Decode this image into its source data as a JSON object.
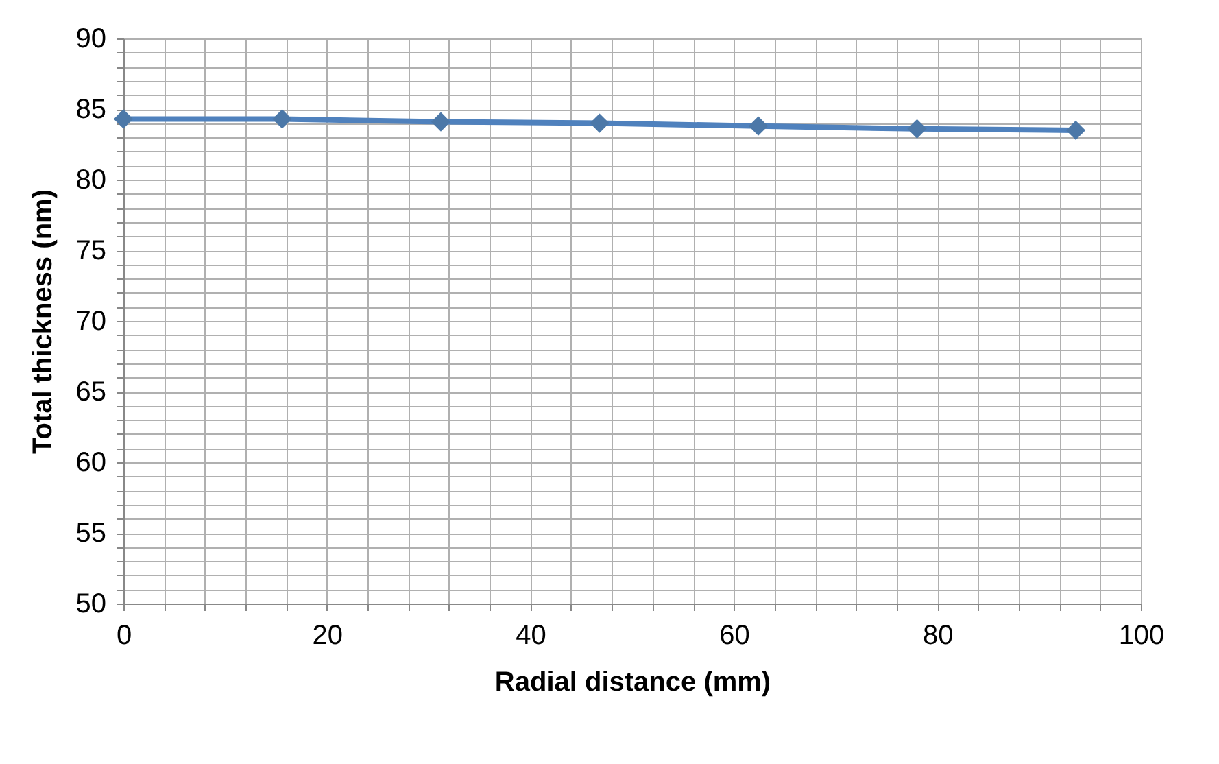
{
  "chart_data": {
    "type": "line",
    "xlabel": "Radial distance (mm)",
    "ylabel": "Total thickness (nm)",
    "x": [
      0,
      15.6,
      31.2,
      46.8,
      62.4,
      78,
      93.6
    ],
    "series": [
      {
        "color": "#4f81bd",
        "values": [
          84.3,
          84.3,
          84.1,
          84.0,
          83.8,
          83.6,
          83.5
        ]
      }
    ],
    "marker": "diamond",
    "line_style": "solid",
    "grid": true,
    "xlim": [
      0,
      100
    ],
    "ylim": [
      50,
      90
    ],
    "xticks": [
      0,
      {
        "value": 4,
        "label": null
      },
      {
        "value": 8,
        "label": null
      },
      {
        "value": 12,
        "label": null
      },
      {
        "value": 16,
        "label": null
      },
      20,
      {
        "value": 24,
        "label": null
      },
      {
        "value": 28,
        "label": null
      },
      {
        "value": 32,
        "label": null
      },
      {
        "value": 36,
        "label": null
      },
      40,
      {
        "value": 44,
        "label": null
      },
      {
        "value": 48,
        "label": null
      },
      {
        "value": 52,
        "label": null
      },
      {
        "value": 56,
        "label": null
      },
      60,
      {
        "value": 64,
        "label": null
      },
      {
        "value": 68,
        "label": null
      },
      {
        "value": 72,
        "label": null
      },
      {
        "value": 76,
        "label": null
      },
      80,
      {
        "value": 84,
        "label": null
      },
      {
        "value": 88,
        "label": null
      },
      {
        "value": 92,
        "label": null
      },
      {
        "value": 96,
        "label": null
      },
      100
    ],
    "yticks": [
      50,
      {
        "value": 51,
        "label": null
      },
      {
        "value": 52,
        "label": null
      },
      {
        "value": 53,
        "label": null
      },
      {
        "value": 54,
        "label": null
      },
      55,
      {
        "value": 56,
        "label": null
      },
      {
        "value": 57,
        "label": null
      },
      {
        "value": 58,
        "label": null
      },
      {
        "value": 59,
        "label": null
      },
      60,
      {
        "value": 61,
        "label": null
      },
      {
        "value": 62,
        "label": null
      },
      {
        "value": 63,
        "label": null
      },
      {
        "value": 64,
        "label": null
      },
      65,
      {
        "value": 66,
        "label": null
      },
      {
        "value": 67,
        "label": null
      },
      {
        "value": 68,
        "label": null
      },
      {
        "value": 69,
        "label": null
      },
      70,
      {
        "value": 71,
        "label": null
      },
      {
        "value": 72,
        "label": null
      },
      {
        "value": 73,
        "label": null
      },
      {
        "value": 74,
        "label": null
      },
      75,
      {
        "value": 76,
        "label": null
      },
      {
        "value": 77,
        "label": null
      },
      {
        "value": 78,
        "label": null
      },
      {
        "value": 79,
        "label": null
      },
      80,
      {
        "value": 81,
        "label": null
      },
      {
        "value": 82,
        "label": null
      },
      {
        "value": 83,
        "label": null
      },
      {
        "value": 84,
        "label": null
      },
      85,
      {
        "value": 86,
        "label": null
      },
      {
        "value": 87,
        "label": null
      },
      {
        "value": 88,
        "label": null
      },
      {
        "value": 89,
        "label": null
      },
      90
    ]
  }
}
